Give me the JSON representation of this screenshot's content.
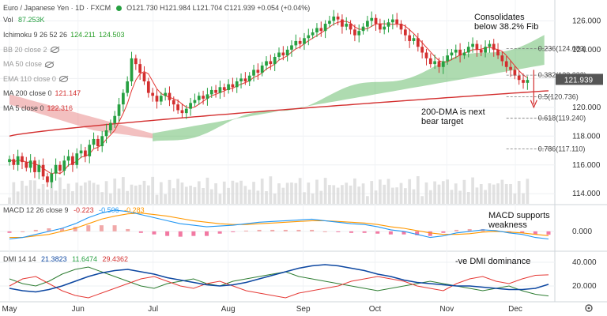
{
  "header": {
    "title": "Euro / Japanese Yen · 1D · FXCM",
    "ohlc": "O121.730 H121.984 L121.704 C121.939 +0.054 (+0.04%)",
    "vol_label": "Vol",
    "vol_value": "87.253K"
  },
  "indicators": [
    {
      "label": "Ichimoku 9 26 52 26",
      "values": [
        "124.211",
        "124.503"
      ],
      "color": "#2aa02a",
      "hidden": false
    },
    {
      "label": "BB 20 close 2",
      "values": [],
      "color": "#999999",
      "hidden": true
    },
    {
      "label": "MA 50 close",
      "values": [],
      "color": "#999999",
      "hidden": true
    },
    {
      "label": "EMA 110 close 0",
      "values": [],
      "color": "#999999",
      "hidden": true
    },
    {
      "label": "MA 200 close 0",
      "values": [
        "121.147"
      ],
      "color": "#d32f2f",
      "hidden": false
    },
    {
      "label": "MA 5 close 0",
      "values": [
        "122.316"
      ],
      "color": "#d32f2f",
      "hidden": false
    }
  ],
  "macd_legend": {
    "label": "MACD 12 26 close 9",
    "values": [
      "-0.223",
      "-0.506",
      "-0.283"
    ]
  },
  "dmi_legend": {
    "label": "DMI 14 14",
    "values": [
      "21.3823",
      "11.6474",
      "29.4362"
    ]
  },
  "annotations": {
    "consolidates": [
      "Consolidates",
      "below 38.2% Fib"
    ],
    "dma": [
      "200-DMA is next",
      "bear target"
    ],
    "macd": [
      "MACD supports",
      "weakness"
    ],
    "dmi": [
      "-ve DMI dominance"
    ]
  },
  "price_label": "121.939",
  "colors": {
    "up": "#26a041",
    "down": "#d32f2f",
    "cloud_up": "#4caf50",
    "cloud_down": "#e57373",
    "ma200": "#d32f2f",
    "macd": "#2196f3",
    "signal": "#ff9800",
    "adx": "#0d47a1"
  },
  "chart_data": [
    {
      "type": "candlestick",
      "title": "Euro / Japanese Yen",
      "x_ticks": [
        "May",
        "Jun",
        "Jul",
        "Aug",
        "Sep",
        "Oct",
        "Nov",
        "Dec"
      ],
      "y_ticks": [
        "126.000",
        "124.000",
        "122.000",
        "120.000",
        "118.000",
        "116.000",
        "114.000"
      ],
      "ylim": [
        113.3,
        126.9
      ],
      "close": [
        116.4,
        116.0,
        116.6,
        116.2,
        115.8,
        116.3,
        115.5,
        116.0,
        115.2,
        114.8,
        115.4,
        116.0,
        115.6,
        116.3,
        116.6,
        116.0,
        116.8,
        117.0,
        116.6,
        117.4,
        117.8,
        117.3,
        118.0,
        118.4,
        118.9,
        119.4,
        120.2,
        121.0,
        121.8,
        123.4,
        123.0,
        122.4,
        121.8,
        121.0,
        120.8,
        120.4,
        120.8,
        121.0,
        120.5,
        120.2,
        119.8,
        119.6,
        119.9,
        120.3,
        120.5,
        120.8,
        120.6,
        120.9,
        121.2,
        121.0,
        121.4,
        121.2,
        121.6,
        121.4,
        121.8,
        122.0,
        121.8,
        122.2,
        122.6,
        122.4,
        122.9,
        123.2,
        123.0,
        123.5,
        123.8,
        123.6,
        124.0,
        124.3,
        124.6,
        124.4,
        124.8,
        125.0,
        125.2,
        125.5,
        125.3,
        125.8,
        126.0,
        126.3,
        126.1,
        125.6,
        125.8,
        125.4,
        125.0,
        125.3,
        125.6,
        126.0,
        126.2,
        125.8,
        125.4,
        125.6,
        125.9,
        126.1,
        125.8,
        125.4,
        125.0,
        124.6,
        124.8,
        124.2,
        123.8,
        123.4,
        123.0,
        123.2,
        122.8,
        123.2,
        123.6,
        123.8,
        124.0,
        123.6,
        123.8,
        124.2,
        124.4,
        124.0,
        123.8,
        124.2,
        124.4,
        124.0,
        123.6,
        123.2,
        122.8,
        122.6,
        122.2,
        121.9,
        121.7,
        121.9
      ],
      "ma200": [
        118.0,
        121.15
      ],
      "ma200_label": "MA 200",
      "fib_levels": [
        {
          "label": "0.236(124.083)",
          "value": 124.083
        },
        {
          "label": "0.382(122.232)",
          "value": 122.232
        },
        {
          "label": "0.5(120.736)",
          "value": 120.736
        },
        {
          "label": "0.618(119.240)",
          "value": 119.24
        },
        {
          "label": "0.786(117.110)",
          "value": 117.11
        }
      ],
      "last_price": 121.939
    },
    {
      "type": "bar",
      "title": "MACD 12 26 close 9",
      "y_ticks": [
        "0.000"
      ],
      "ylim": [
        -1.2,
        1.6
      ],
      "macd": [
        -0.5,
        -0.4,
        -0.2,
        0.0,
        0.2,
        0.5,
        0.9,
        1.2,
        1.4,
        1.3,
        1.1,
        0.9,
        0.7,
        0.5,
        0.4,
        0.3,
        0.35,
        0.4,
        0.5,
        0.6,
        0.65,
        0.7,
        0.75,
        0.8,
        0.7,
        0.6,
        0.5,
        0.45,
        0.3,
        0.1,
        0.0,
        -0.2,
        -0.4,
        -0.3,
        -0.1,
        0.0,
        0.1,
        0.05,
        -0.1,
        -0.2,
        -0.4,
        -0.5
      ],
      "signal": [
        -0.4,
        -0.4,
        -0.3,
        -0.2,
        0.0,
        0.2,
        0.5,
        0.8,
        1.0,
        1.15,
        1.2,
        1.1,
        1.0,
        0.85,
        0.7,
        0.6,
        0.5,
        0.45,
        0.45,
        0.5,
        0.55,
        0.6,
        0.65,
        0.7,
        0.7,
        0.65,
        0.6,
        0.55,
        0.45,
        0.3,
        0.2,
        0.05,
        -0.1,
        -0.2,
        -0.2,
        -0.15,
        -0.05,
        0.0,
        -0.05,
        -0.1,
        -0.2,
        -0.28
      ],
      "histogram": [
        -0.1,
        0.0,
        0.1,
        0.2,
        0.2,
        0.3,
        0.4,
        0.4,
        0.4,
        0.15,
        -0.1,
        -0.2,
        -0.3,
        -0.35,
        -0.3,
        -0.3,
        -0.15,
        -0.05,
        0.05,
        0.1,
        0.1,
        0.1,
        0.1,
        0.1,
        0.0,
        -0.05,
        -0.1,
        -0.1,
        -0.15,
        -0.2,
        -0.2,
        -0.25,
        -0.3,
        -0.1,
        0.1,
        0.15,
        0.15,
        0.05,
        -0.05,
        -0.1,
        -0.2,
        -0.22
      ]
    },
    {
      "type": "line",
      "title": "DMI 14 14",
      "y_ticks": [
        "40.000",
        "20.000"
      ],
      "ylim": [
        8,
        48
      ],
      "adx": [
        18,
        16,
        15,
        17,
        20,
        24,
        28,
        31,
        33,
        34,
        32,
        30,
        27,
        25,
        23,
        21,
        20,
        21,
        23,
        26,
        29,
        32,
        35,
        37,
        38,
        37,
        35,
        33,
        30,
        28,
        25,
        23,
        22,
        21,
        20,
        20,
        19,
        18,
        17,
        17,
        18,
        21.4
      ],
      "plus_di": [
        26,
        22,
        20,
        24,
        30,
        34,
        36,
        32,
        28,
        24,
        20,
        18,
        22,
        24,
        26,
        22,
        20,
        24,
        26,
        28,
        30,
        32,
        28,
        26,
        24,
        22,
        20,
        18,
        16,
        18,
        20,
        22,
        24,
        22,
        20,
        18,
        16,
        18,
        20,
        16,
        13,
        11.6
      ],
      "minus_di": [
        20,
        26,
        28,
        22,
        16,
        12,
        10,
        14,
        18,
        22,
        26,
        28,
        24,
        20,
        18,
        22,
        24,
        20,
        16,
        14,
        12,
        10,
        14,
        16,
        18,
        20,
        24,
        26,
        28,
        26,
        24,
        20,
        18,
        16,
        22,
        26,
        28,
        24,
        22,
        26,
        29,
        29.4
      ]
    }
  ]
}
